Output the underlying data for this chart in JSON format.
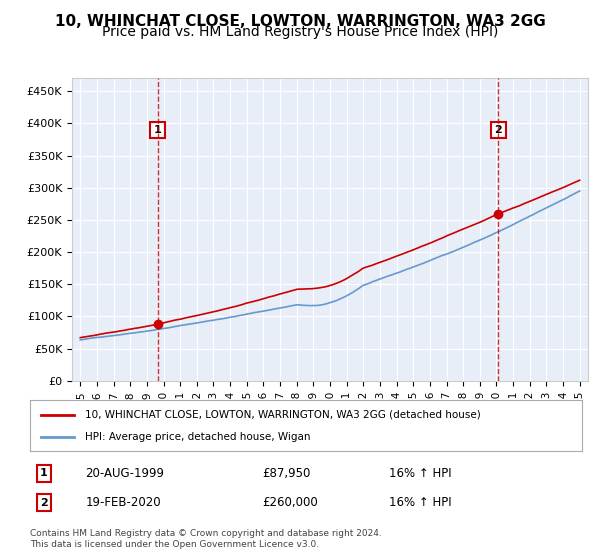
{
  "title": "10, WHINCHAT CLOSE, LOWTON, WARRINGTON, WA3 2GG",
  "subtitle": "Price paid vs. HM Land Registry's House Price Index (HPI)",
  "ylabel_ticks": [
    0,
    50000,
    100000,
    150000,
    200000,
    250000,
    300000,
    350000,
    400000,
    450000
  ],
  "ylabel_labels": [
    "£0",
    "£50K",
    "£100K",
    "£150K",
    "£200K",
    "£250K",
    "£300K",
    "£350K",
    "£400K",
    "£450K"
  ],
  "ylim": [
    0,
    470000
  ],
  "xlim_start": 1994.5,
  "xlim_end": 2025.5,
  "xticks": [
    1995,
    1996,
    1997,
    1998,
    1999,
    2000,
    2001,
    2002,
    2003,
    2004,
    2005,
    2006,
    2007,
    2008,
    2009,
    2010,
    2011,
    2012,
    2013,
    2014,
    2015,
    2016,
    2017,
    2018,
    2019,
    2020,
    2021,
    2022,
    2023,
    2024,
    2025
  ],
  "background_color": "#e8eef8",
  "plot_bg": "#e8eef8",
  "red_line_color": "#cc0000",
  "blue_line_color": "#6699cc",
  "marker1_x": 1999.64,
  "marker1_y": 87950,
  "marker2_x": 2020.12,
  "marker2_y": 260000,
  "legend_line1": "10, WHINCHAT CLOSE, LOWTON, WARRINGTON, WA3 2GG (detached house)",
  "legend_line2": "HPI: Average price, detached house, Wigan",
  "table_row1_num": "1",
  "table_row1_date": "20-AUG-1999",
  "table_row1_price": "£87,950",
  "table_row1_hpi": "16% ↑ HPI",
  "table_row2_num": "2",
  "table_row2_date": "19-FEB-2020",
  "table_row2_price": "£260,000",
  "table_row2_hpi": "16% ↑ HPI",
  "footnote": "Contains HM Land Registry data © Crown copyright and database right 2024.\nThis data is licensed under the Open Government Licence v3.0.",
  "title_fontsize": 11,
  "subtitle_fontsize": 10
}
